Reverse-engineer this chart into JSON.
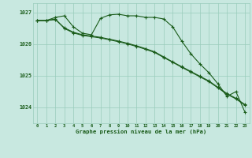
{
  "title": "Graphe pression niveau de la mer (hPa)",
  "bg_color": "#c8e8e0",
  "grid_color": "#99ccbb",
  "line_color": "#1a5c1a",
  "x_values": [
    0,
    1,
    2,
    3,
    4,
    5,
    6,
    7,
    8,
    9,
    10,
    11,
    12,
    13,
    14,
    15,
    16,
    17,
    18,
    19,
    20,
    21,
    22,
    23
  ],
  "series1": [
    1026.75,
    1026.75,
    1026.85,
    1026.9,
    1026.55,
    1026.35,
    1026.3,
    1026.82,
    1026.93,
    1026.95,
    1026.9,
    1026.9,
    1026.85,
    1026.85,
    1026.8,
    1026.55,
    1026.1,
    1025.7,
    1025.38,
    1025.1,
    1024.75,
    1024.35,
    1024.5,
    1023.85
  ],
  "series2": [
    1026.75,
    1026.75,
    1026.78,
    1026.52,
    1026.38,
    1026.3,
    1026.26,
    1026.22,
    1026.16,
    1026.1,
    1026.03,
    1025.95,
    1025.86,
    1025.76,
    1025.6,
    1025.44,
    1025.29,
    1025.14,
    1024.99,
    1024.84,
    1024.64,
    1024.44,
    1024.29,
    1024.09
  ],
  "series3": [
    1026.75,
    1026.75,
    1026.8,
    1026.5,
    1026.36,
    1026.28,
    1026.24,
    1026.2,
    1026.14,
    1026.08,
    1026.01,
    1025.93,
    1025.84,
    1025.74,
    1025.58,
    1025.43,
    1025.27,
    1025.12,
    1024.97,
    1024.82,
    1024.62,
    1024.42,
    1024.27,
    1024.07
  ],
  "ylim": [
    1023.5,
    1027.3
  ],
  "yticks": [
    1024,
    1025,
    1026,
    1027
  ],
  "xlim": [
    -0.5,
    23.5
  ],
  "figsize": [
    3.2,
    2.0
  ],
  "dpi": 100
}
